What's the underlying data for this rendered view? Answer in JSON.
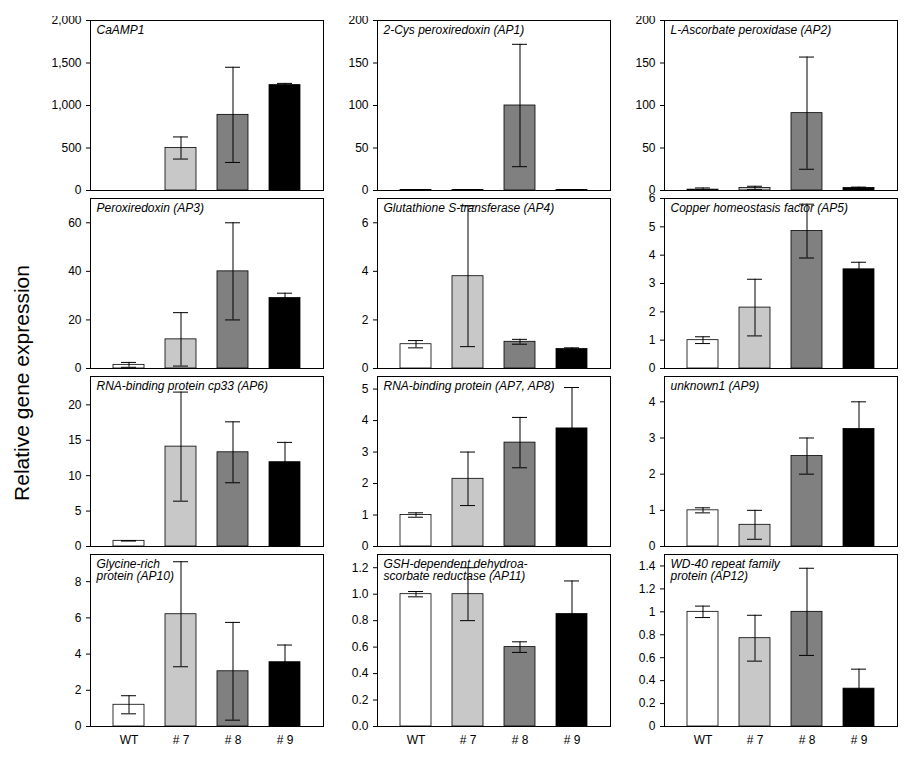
{
  "ylabel": "Relative gene expression",
  "chart_data": [
    {
      "type": "bar",
      "title": "CaAMP1",
      "categories": [
        "WT",
        "# 7",
        "# 8",
        "# 9"
      ],
      "values": [
        0,
        500,
        890,
        1240
      ],
      "errors": [
        0,
        130,
        560,
        20
      ],
      "colors": [
        "#ffffff",
        "#c8c8c8",
        "#808080",
        "#000000"
      ],
      "ylim": [
        0,
        2000
      ],
      "yticks": [
        0,
        500,
        {
          "value": 1000,
          "label": "1,000"
        },
        {
          "value": 1500,
          "label": "1,500"
        },
        {
          "value": 2000,
          "label": "2,000"
        }
      ],
      "tick_labels": "y"
    },
    {
      "type": "bar",
      "title": "2-Cys peroxiredoxin (AP1)",
      "categories": [
        "WT",
        "# 7",
        "# 8",
        "# 9"
      ],
      "values": [
        0.5,
        0.5,
        100,
        0.5
      ],
      "errors": [
        0,
        0,
        72,
        0
      ],
      "colors": [
        "#ffffff",
        "#c8c8c8",
        "#808080",
        "#000000"
      ],
      "ylim": [
        0,
        200
      ],
      "yticks": [
        0,
        50,
        100,
        150,
        200
      ],
      "tick_labels": "y"
    },
    {
      "type": "bar",
      "title": "L-Ascorbate peroxidase (AP2)",
      "categories": [
        "WT",
        "# 7",
        "# 8",
        "# 9"
      ],
      "values": [
        1,
        3,
        91,
        3
      ],
      "errors": [
        2,
        2,
        66,
        1
      ],
      "colors": [
        "#ffffff",
        "#c8c8c8",
        "#808080",
        "#000000"
      ],
      "ylim": [
        0,
        200
      ],
      "yticks": [
        0,
        50,
        100,
        150,
        200
      ],
      "tick_labels": "y"
    },
    {
      "type": "bar",
      "title": "Peroxiredoxin (AP3)",
      "categories": [
        "WT",
        "# 7",
        "# 8",
        "# 9"
      ],
      "values": [
        1.5,
        12,
        40,
        29
      ],
      "errors": [
        1,
        11,
        20,
        2
      ],
      "colors": [
        "#ffffff",
        "#c8c8c8",
        "#808080",
        "#000000"
      ],
      "ylim": [
        0,
        70
      ],
      "yticks": [
        0,
        20,
        40,
        60
      ],
      "tick_labels": "y"
    },
    {
      "type": "bar",
      "title": "Glutathione S-transferase (AP4)",
      "categories": [
        "WT",
        "# 7",
        "# 8",
        "# 9"
      ],
      "values": [
        1,
        3.8,
        1.1,
        0.8
      ],
      "errors": [
        0.15,
        2.9,
        0.1,
        0.05
      ],
      "colors": [
        "#ffffff",
        "#c8c8c8",
        "#808080",
        "#000000"
      ],
      "ylim": [
        0,
        7
      ],
      "yticks": [
        0,
        2,
        4,
        6
      ],
      "tick_labels": "y"
    },
    {
      "type": "bar",
      "title": "Copper homeostasis factor (AP5)",
      "categories": [
        "WT",
        "# 7",
        "# 8",
        "# 9"
      ],
      "values": [
        1,
        2.15,
        4.85,
        3.5
      ],
      "errors": [
        0.12,
        1,
        0.95,
        0.25
      ],
      "colors": [
        "#ffffff",
        "#c8c8c8",
        "#808080",
        "#000000"
      ],
      "ylim": [
        0,
        6
      ],
      "yticks": [
        0,
        1,
        2,
        3,
        4,
        5,
        6
      ],
      "tick_labels": "y"
    },
    {
      "type": "bar",
      "title": "RNA-binding protein cp33 (AP6)",
      "categories": [
        "WT",
        "# 7",
        "# 8",
        "# 9"
      ],
      "values": [
        0.8,
        14.1,
        13.3,
        11.9
      ],
      "errors": [
        0,
        7.7,
        4.3,
        2.8
      ],
      "colors": [
        "#ffffff",
        "#c8c8c8",
        "#808080",
        "#000000"
      ],
      "ylim": [
        0,
        24
      ],
      "yticks": [
        0,
        5,
        10,
        15,
        20
      ],
      "tick_labels": "y"
    },
    {
      "type": "bar",
      "title": "RNA-binding protein (AP7, AP8)",
      "categories": [
        "WT",
        "# 7",
        "# 8",
        "# 9"
      ],
      "values": [
        1,
        2.15,
        3.3,
        3.75
      ],
      "errors": [
        0.07,
        0.85,
        0.8,
        1.3
      ],
      "colors": [
        "#ffffff",
        "#c8c8c8",
        "#808080",
        "#000000"
      ],
      "ylim": [
        0,
        5.4
      ],
      "yticks": [
        0,
        1,
        2,
        3,
        4,
        5
      ],
      "tick_labels": "y"
    },
    {
      "type": "bar",
      "title": "unknown1 (AP9)",
      "categories": [
        "WT",
        "# 7",
        "# 8",
        "# 9"
      ],
      "values": [
        1,
        0.6,
        2.5,
        3.25
      ],
      "errors": [
        0.07,
        0.4,
        0.5,
        0.75
      ],
      "colors": [
        "#ffffff",
        "#c8c8c8",
        "#808080",
        "#000000"
      ],
      "ylim": [
        0,
        4.7
      ],
      "yticks": [
        0,
        1,
        2,
        3,
        4
      ],
      "tick_labels": "y"
    },
    {
      "type": "bar",
      "title": "Glycine-rich\nprotein (AP10)",
      "categories": [
        "WT",
        "# 7",
        "# 8",
        "# 9"
      ],
      "values": [
        1.2,
        6.2,
        3.05,
        3.55
      ],
      "errors": [
        0.5,
        2.9,
        2.7,
        0.95
      ],
      "colors": [
        "#ffffff",
        "#c8c8c8",
        "#808080",
        "#000000"
      ],
      "ylim": [
        0,
        9.5
      ],
      "yticks": [
        0,
        2,
        4,
        6,
        8
      ]
    },
    {
      "type": "bar",
      "title": "GSH-dependent dehydroa-\nscorbate reductase (AP11)",
      "categories": [
        "WT",
        "# 7",
        "# 8",
        "# 9"
      ],
      "values": [
        1,
        1,
        0.6,
        0.85
      ],
      "errors": [
        0.02,
        0.2,
        0.04,
        0.25
      ],
      "colors": [
        "#ffffff",
        "#c8c8c8",
        "#808080",
        "#000000"
      ],
      "ylim": [
        0,
        1.3
      ],
      "yticks": [
        {
          "value": 0,
          "label": "0.0"
        },
        0.2,
        0.4,
        0.6,
        0.8,
        {
          "value": 1,
          "label": "1.0"
        },
        1.2
      ]
    },
    {
      "type": "bar",
      "title": "WD-40 repeat family\nprotein (AP12)",
      "categories": [
        "WT",
        "# 7",
        "# 8",
        "# 9"
      ],
      "values": [
        1,
        0.77,
        1,
        0.33
      ],
      "errors": [
        0.05,
        0.2,
        0.38,
        0.17
      ],
      "colors": [
        "#ffffff",
        "#c8c8c8",
        "#808080",
        "#000000"
      ],
      "ylim": [
        0,
        1.5
      ],
      "yticks": [
        0,
        0.2,
        0.4,
        0.6,
        0.8,
        1,
        1.2,
        1.4
      ]
    }
  ]
}
